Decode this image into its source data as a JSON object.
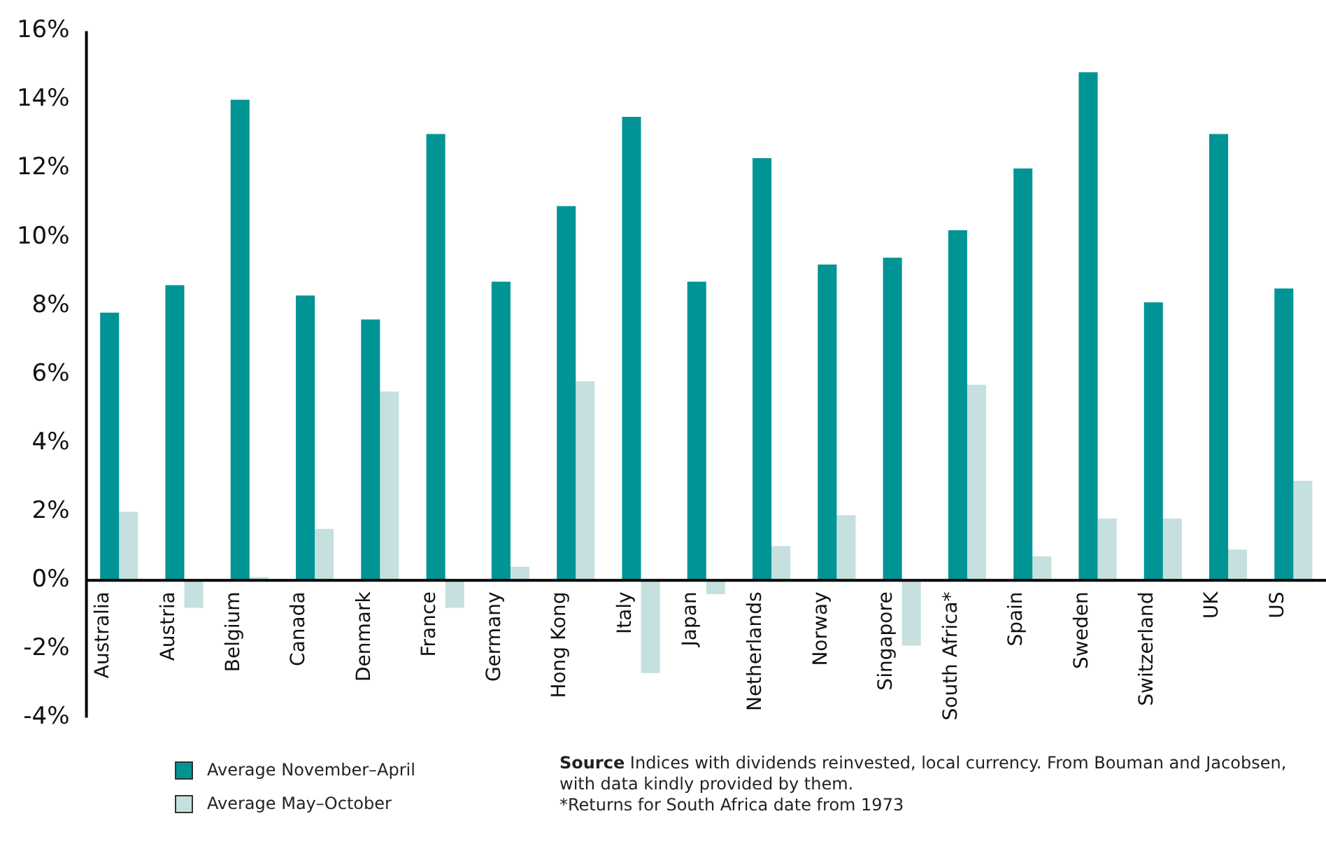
{
  "chart_data": {
    "type": "bar",
    "categories": [
      "Australia",
      "Austria",
      "Belgium",
      "Canada",
      "Denmark",
      "France",
      "Germany",
      "Hong Kong",
      "Italy",
      "Japan",
      "Netherlands",
      "Norway",
      "Singapore",
      "South Africa*",
      "Spain",
      "Sweden",
      "Switzerland",
      "UK",
      "US"
    ],
    "series": [
      {
        "name": "Average November–April",
        "color": "#009494",
        "values": [
          7.8,
          8.6,
          14.0,
          8.3,
          7.6,
          13.0,
          8.7,
          10.9,
          13.5,
          8.7,
          12.3,
          9.2,
          9.4,
          10.2,
          12.0,
          14.8,
          8.1,
          13.0,
          8.5
        ]
      },
      {
        "name": "Average May–October",
        "color": "#c5e0df",
        "values": [
          2.0,
          -0.8,
          0.1,
          1.5,
          5.5,
          -0.8,
          0.4,
          5.8,
          -2.7,
          -0.4,
          1.0,
          1.9,
          -1.9,
          5.7,
          0.7,
          1.8,
          1.8,
          0.9,
          2.9
        ]
      }
    ],
    "ylim": [
      -4,
      16
    ],
    "yticks": [
      {
        "value": -4,
        "label": "-4%"
      },
      {
        "value": -2,
        "label": "-2%"
      },
      {
        "value": 0,
        "label": "0%"
      },
      {
        "value": 2,
        "label": "2%"
      },
      {
        "value": 4,
        "label": "4%"
      },
      {
        "value": 6,
        "label": "6%"
      },
      {
        "value": 8,
        "label": "8%"
      },
      {
        "value": 10,
        "label": "10%"
      },
      {
        "value": 12,
        "label": "12%"
      },
      {
        "value": 14,
        "label": "14%"
      },
      {
        "value": 16,
        "label": "16%"
      }
    ],
    "grid": false,
    "legend": "bottom left",
    "annotations": [
      "Source Indices with dividends reinvested, local currency. From Bouman and Jacobsen, with data kindly provided by them.",
      "*Returns for South Africa date from 1973"
    ]
  }
}
